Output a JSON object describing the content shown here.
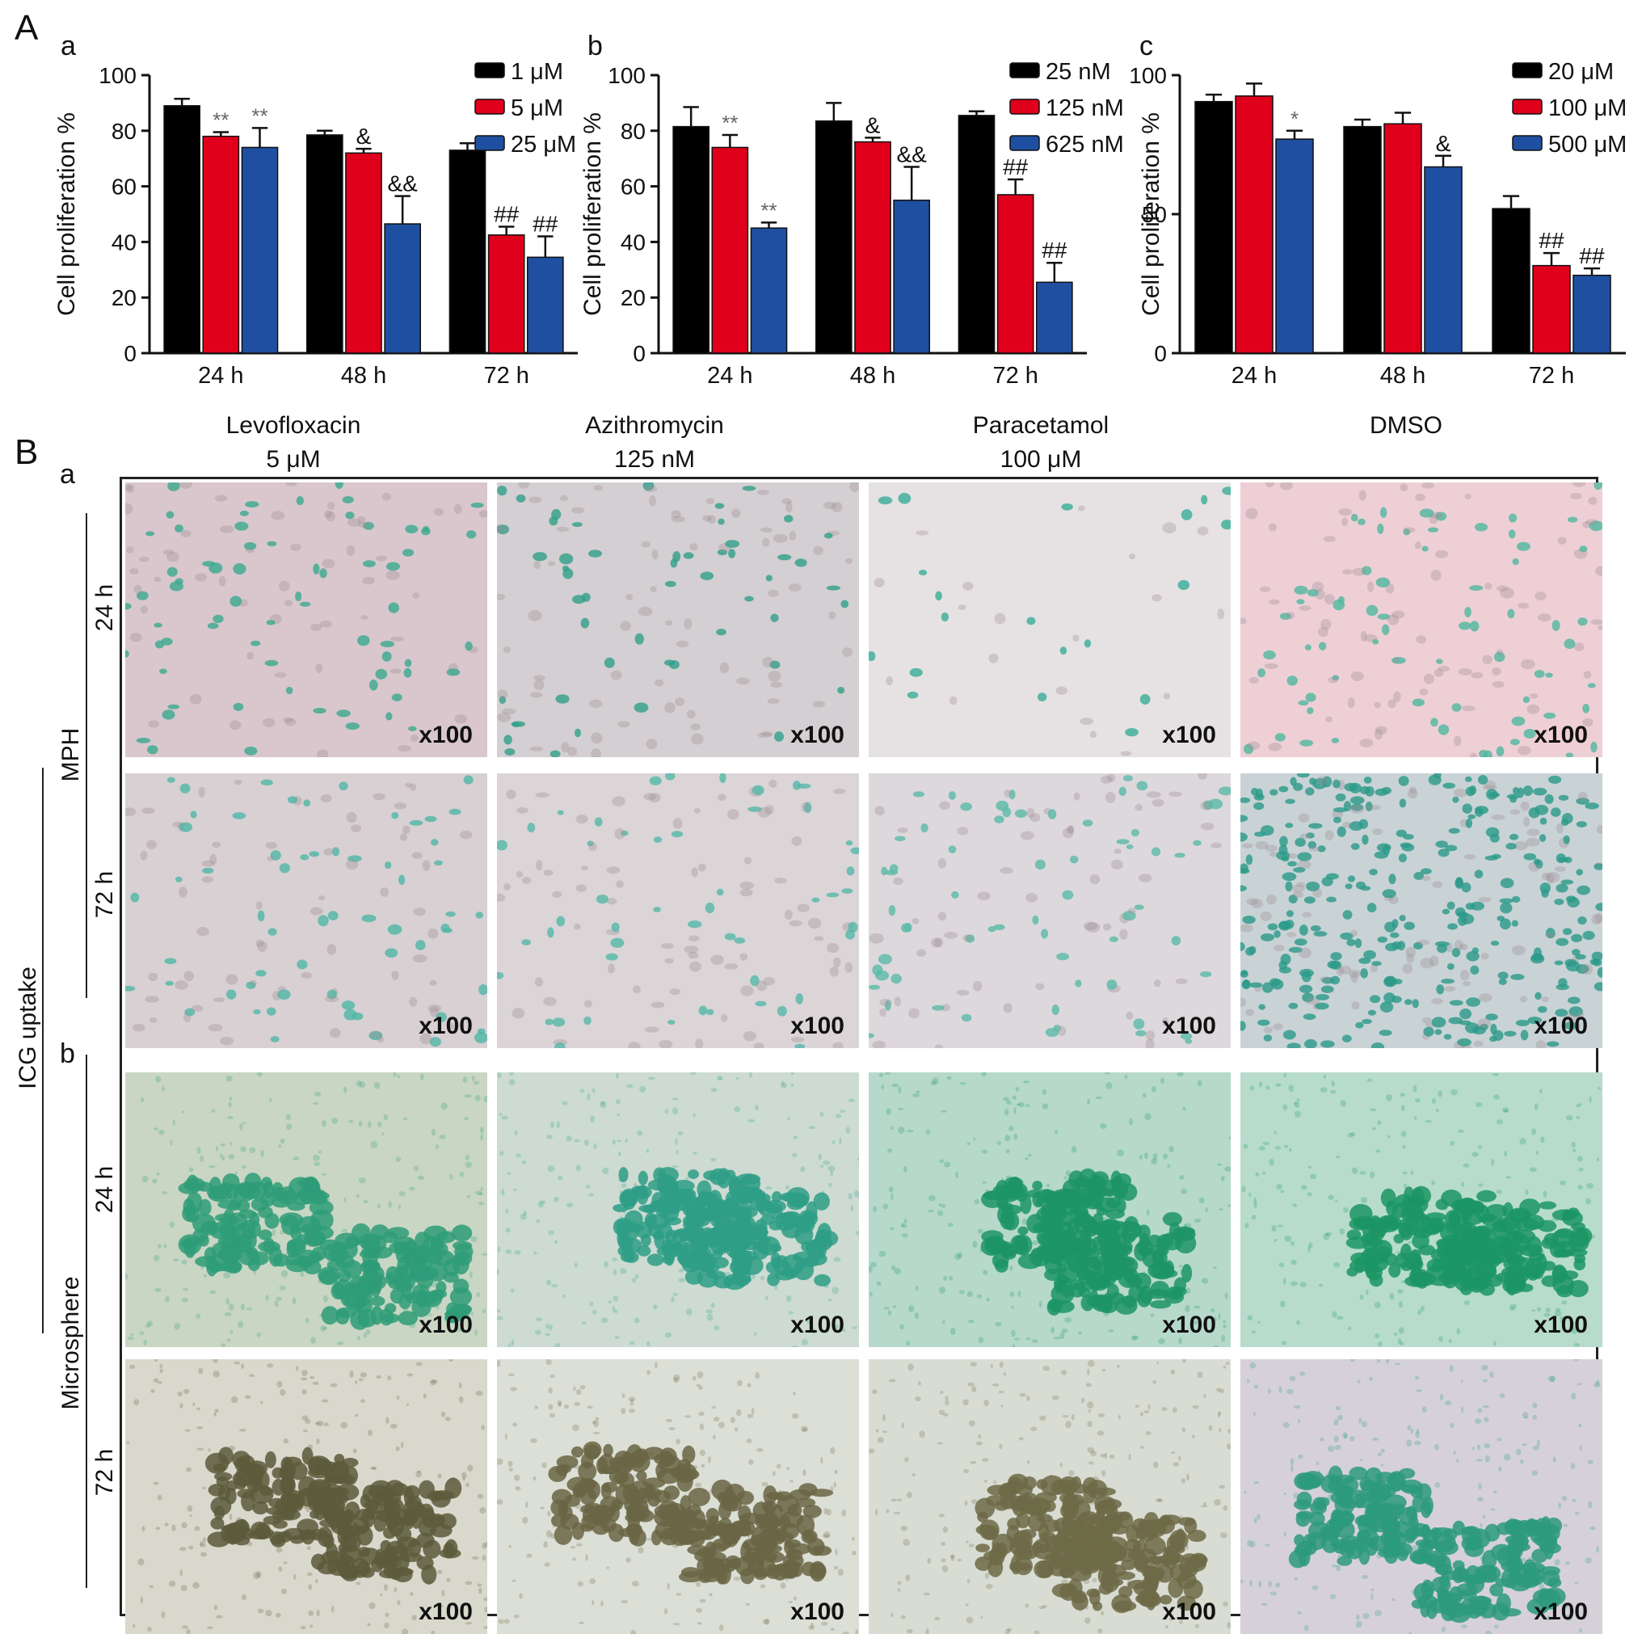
{
  "panel_labels": {
    "A": "A",
    "B": "B"
  },
  "chart_data": [
    {
      "type": "bar",
      "panel": "a",
      "ylabel": "Cell proliferation %",
      "ylim": [
        0,
        100
      ],
      "yticks": [
        0,
        20,
        40,
        60,
        80,
        100
      ],
      "categories": [
        "24 h",
        "48 h",
        "72 h"
      ],
      "series": [
        {
          "name": "1 μM",
          "color": "#000000",
          "values": [
            89,
            78.5,
            73
          ],
          "errors": [
            2.5,
            1.5,
            2.5
          ],
          "marks": [
            "",
            "",
            ""
          ]
        },
        {
          "name": "5 μM",
          "color": "#e0001b",
          "values": [
            78,
            72,
            42.5
          ],
          "errors": [
            1.5,
            1.5,
            3
          ],
          "marks": [
            "**",
            "&",
            "##"
          ]
        },
        {
          "name": "25 μM",
          "color": "#1f4fa0",
          "values": [
            74,
            46.5,
            34.5
          ],
          "errors": [
            7,
            10,
            7.5
          ],
          "marks": [
            "**",
            "&&",
            "##"
          ]
        }
      ],
      "legend": "top-right",
      "grid": false
    },
    {
      "type": "bar",
      "panel": "b",
      "ylabel": "Cell proliferation %",
      "ylim": [
        0,
        100
      ],
      "yticks": [
        0,
        20,
        40,
        60,
        80,
        100
      ],
      "categories": [
        "24 h",
        "48 h",
        "72 h"
      ],
      "series": [
        {
          "name": "25 nM",
          "color": "#000000",
          "values": [
            81.5,
            83.5,
            85.5
          ],
          "errors": [
            7,
            6.5,
            1.5
          ],
          "marks": [
            "",
            "",
            ""
          ]
        },
        {
          "name": "125 nM",
          "color": "#e0001b",
          "values": [
            74,
            76,
            57
          ],
          "errors": [
            4.5,
            1.5,
            5.5
          ],
          "marks": [
            "**",
            "&",
            "##"
          ]
        },
        {
          "name": "625 nM",
          "color": "#1f4fa0",
          "values": [
            45,
            55,
            25.5
          ],
          "errors": [
            2,
            12,
            7
          ],
          "marks": [
            "**",
            "&&",
            "##"
          ]
        }
      ],
      "legend": "top-right",
      "grid": false
    },
    {
      "type": "bar",
      "panel": "c",
      "ylabel": "Cell proliferation %",
      "ylim": [
        0,
        100
      ],
      "yticks": [
        0,
        50,
        100
      ],
      "categories": [
        "24 h",
        "48 h",
        "72 h"
      ],
      "series": [
        {
          "name": "20 μM",
          "color": "#000000",
          "values": [
            90.5,
            81.5,
            52
          ],
          "errors": [
            2.5,
            2.5,
            4.5
          ],
          "marks": [
            "",
            "",
            ""
          ]
        },
        {
          "name": "100 μM",
          "color": "#e0001b",
          "values": [
            92.5,
            82.5,
            31.5
          ],
          "errors": [
            4.5,
            4,
            4.5
          ],
          "marks": [
            "",
            "",
            "##"
          ]
        },
        {
          "name": "500 μM",
          "color": "#1f4fa0",
          "values": [
            77,
            67,
            28
          ],
          "errors": [
            3,
            4,
            2.5
          ],
          "marks": [
            "*",
            "&",
            "##"
          ]
        }
      ],
      "legend": "top-right",
      "grid": false
    }
  ],
  "micrographs": {
    "section_a_label": "a",
    "section_b_label": "b",
    "columns": [
      {
        "line1": "Levofloxacin",
        "line2": "5 μM"
      },
      {
        "line1": "Azithromycin",
        "line2": "125 nM"
      },
      {
        "line1": "Paracetamol",
        "line2": "100 μM"
      },
      {
        "line1": "",
        "line2": "DMSO"
      }
    ],
    "row_labels": [
      "24 h",
      "72 h",
      "24 h",
      "72 h"
    ],
    "group_labels": {
      "mph": "MPH",
      "microsphere": "Microsphere",
      "icg": "ICG uptake"
    },
    "magnification": "x100",
    "tiles": [
      [
        {
          "bg": "#d9c7cd",
          "stain": "#3aa98f",
          "style": "sparse-cells"
        },
        {
          "bg": "#d4cfd2",
          "stain": "#2f9f8a",
          "style": "sparse-cells"
        },
        {
          "bg": "#e6e2e3",
          "stain": "#3aae96",
          "style": "few-cells"
        },
        {
          "bg": "#efcfd6",
          "stain": "#4fb79f",
          "style": "many-cells"
        }
      ],
      [
        {
          "bg": "#d8d0d3",
          "stain": "#4fb7a5",
          "style": "sparse-cells"
        },
        {
          "bg": "#dbd5d8",
          "stain": "#54b8a8",
          "style": "sparse-cells"
        },
        {
          "bg": "#ddd8dc",
          "stain": "#5abaa8",
          "style": "sparse-cells"
        },
        {
          "bg": "#c9d3d6",
          "stain": "#2b9a88",
          "style": "dense-cells"
        }
      ],
      [
        {
          "bg": "#c9d6c4",
          "stain": "#2e9c78",
          "style": "cluster"
        },
        {
          "bg": "#cddbd2",
          "stain": "#2e9e86",
          "style": "cluster"
        },
        {
          "bg": "#b6d9cb",
          "stain": "#1d9466",
          "style": "cluster"
        },
        {
          "bg": "#b7dccc",
          "stain": "#1c9564",
          "style": "cluster"
        }
      ],
      [
        {
          "bg": "#d9d8cc",
          "stain": "#5c5a3b",
          "style": "dark-cluster"
        },
        {
          "bg": "#dbdfd5",
          "stain": "#6a6544",
          "style": "dark-cluster"
        },
        {
          "bg": "#d8dcd2",
          "stain": "#6d6a46",
          "style": "dark-cluster"
        },
        {
          "bg": "#d6d1d8",
          "stain": "#2d9a7c",
          "style": "cluster"
        }
      ]
    ]
  }
}
